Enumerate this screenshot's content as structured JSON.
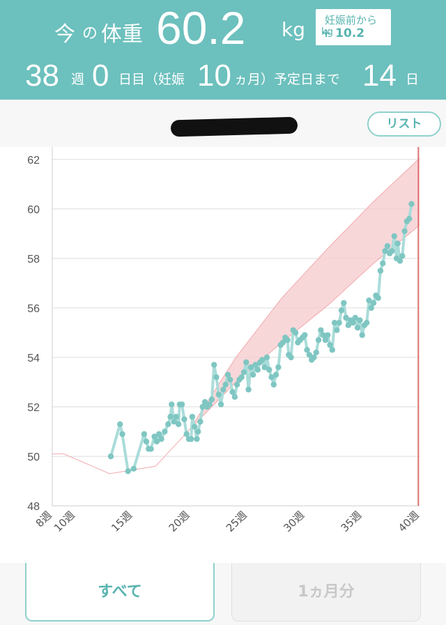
{
  "header": {
    "current_label_1": "今",
    "current_label_2": "の",
    "current_label_3": "体重",
    "weight_value": "60.2",
    "weight_unit": "kg",
    "delta_label": "妊娠前から",
    "delta_value": "+ 10.2",
    "delta_unit": "kg",
    "weeks": "38",
    "weeks_unit": "週",
    "days": "0",
    "days_unit": "日目（妊娠",
    "months": "10",
    "months_unit": "ヵ月）予定日まで",
    "days_left": "14",
    "days_left_unit": "日"
  },
  "toolbar": {
    "list_label": "リスト"
  },
  "tabs": {
    "all_label": "すべて",
    "month_label": "1ヵ月分"
  },
  "colors": {
    "header_bg": "#6cc0bd",
    "accent": "#58b4b0",
    "series": "#7fc6c2",
    "range_fill": "#f6c9cc",
    "due_line": "#e07070"
  },
  "chart_data": {
    "type": "line",
    "y_ticks": [
      48,
      50,
      52,
      54,
      56,
      58,
      60,
      62
    ],
    "x_ticks": [
      "8週",
      "10週",
      "15週",
      "20週",
      "25週",
      "30週",
      "35週",
      "40週"
    ],
    "x_tick_values": [
      8,
      10,
      15,
      20,
      25,
      30,
      35,
      40
    ],
    "xlim": [
      8,
      40
    ],
    "ylim": [
      48,
      62.5
    ],
    "grid": true,
    "due_week": 39.9,
    "recommended_range": {
      "weeks": [
        8,
        9,
        13,
        17,
        20,
        24,
        28,
        32,
        36,
        39.9,
        41.5
      ],
      "lower": [
        50.1,
        50.1,
        49.3,
        49.6,
        51.1,
        53.0,
        54.6,
        56.1,
        57.8,
        59.3,
        60.0
      ],
      "upper": [
        50.1,
        50.1,
        49.3,
        49.6,
        51.1,
        54.0,
        56.4,
        58.4,
        60.3,
        62.0,
        63.0
      ]
    },
    "weight_series": {
      "name": "体重",
      "points": [
        [
          13.1,
          50.0
        ],
        [
          13.9,
          51.3
        ],
        [
          14.1,
          50.9
        ],
        [
          14.6,
          49.4
        ],
        [
          15.1,
          49.5
        ],
        [
          16.0,
          50.9
        ],
        [
          16.2,
          50.6
        ],
        [
          16.4,
          50.3
        ],
        [
          16.6,
          50.3
        ],
        [
          16.9,
          50.8
        ],
        [
          17.1,
          50.6
        ],
        [
          17.3,
          50.9
        ],
        [
          17.5,
          50.7
        ],
        [
          17.8,
          51.0
        ],
        [
          18.1,
          51.3
        ],
        [
          18.3,
          51.6
        ],
        [
          18.4,
          52.1
        ],
        [
          18.6,
          51.4
        ],
        [
          18.8,
          51.6
        ],
        [
          19.0,
          51.3
        ],
        [
          19.1,
          52.1
        ],
        [
          19.3,
          52.1
        ],
        [
          19.5,
          51.5
        ],
        [
          19.7,
          50.9
        ],
        [
          19.9,
          50.7
        ],
        [
          20.1,
          50.7
        ],
        [
          20.2,
          51.6
        ],
        [
          20.4,
          51.2
        ],
        [
          20.6,
          50.7
        ],
        [
          20.7,
          51.0
        ],
        [
          20.9,
          51.4
        ],
        [
          21.1,
          52.0
        ],
        [
          21.3,
          52.2
        ],
        [
          21.5,
          52.0
        ],
        [
          21.7,
          52.1
        ],
        [
          21.9,
          52.3
        ],
        [
          22.1,
          53.7
        ],
        [
          22.3,
          53.2
        ],
        [
          22.5,
          52.5
        ],
        [
          22.7,
          52.1
        ],
        [
          22.9,
          52.7
        ],
        [
          23.1,
          52.9
        ],
        [
          23.3,
          53.3
        ],
        [
          23.5,
          53.1
        ],
        [
          23.7,
          52.6
        ],
        [
          23.9,
          52.4
        ],
        [
          24.1,
          52.9
        ],
        [
          24.3,
          53.1
        ],
        [
          24.5,
          53.2
        ],
        [
          24.7,
          53.4
        ],
        [
          24.9,
          53.8
        ],
        [
          25.1,
          52.7
        ],
        [
          25.3,
          53.6
        ],
        [
          25.5,
          53.3
        ],
        [
          25.7,
          53.7
        ],
        [
          25.9,
          53.5
        ],
        [
          26.1,
          53.8
        ],
        [
          26.3,
          53.9
        ],
        [
          26.5,
          53.6
        ],
        [
          26.7,
          54.0
        ],
        [
          26.9,
          53.5
        ],
        [
          27.1,
          53.2
        ],
        [
          27.3,
          52.9
        ],
        [
          27.5,
          53.3
        ],
        [
          27.7,
          53.6
        ],
        [
          27.9,
          54.5
        ],
        [
          28.1,
          54.6
        ],
        [
          28.3,
          54.8
        ],
        [
          28.5,
          54.7
        ],
        [
          28.6,
          54.1
        ],
        [
          28.8,
          54.0
        ],
        [
          29.0,
          55.1
        ],
        [
          29.2,
          55.0
        ],
        [
          29.4,
          54.6
        ],
        [
          29.6,
          54.7
        ],
        [
          29.8,
          54.8
        ],
        [
          30.0,
          54.9
        ],
        [
          30.2,
          54.3
        ],
        [
          30.4,
          54.1
        ],
        [
          30.6,
          53.9
        ],
        [
          30.8,
          54.0
        ],
        [
          31.0,
          54.2
        ],
        [
          31.2,
          54.7
        ],
        [
          31.4,
          55.1
        ],
        [
          31.6,
          54.9
        ],
        [
          31.8,
          54.7
        ],
        [
          32.0,
          54.9
        ],
        [
          32.2,
          54.5
        ],
        [
          32.4,
          54.3
        ],
        [
          32.6,
          55.4
        ],
        [
          32.8,
          55.1
        ],
        [
          33.0,
          55.4
        ],
        [
          33.2,
          55.9
        ],
        [
          33.4,
          56.2
        ],
        [
          33.6,
          55.6
        ],
        [
          33.8,
          55.3
        ],
        [
          34.0,
          55.5
        ],
        [
          34.2,
          55.4
        ],
        [
          34.4,
          55.6
        ],
        [
          34.6,
          55.2
        ],
        [
          34.8,
          55.5
        ],
        [
          35.0,
          54.9
        ],
        [
          35.2,
          55.3
        ],
        [
          35.4,
          55.4
        ],
        [
          35.6,
          56.3
        ],
        [
          35.8,
          56.0
        ],
        [
          36.0,
          56.2
        ],
        [
          36.2,
          56.5
        ],
        [
          36.4,
          56.4
        ],
        [
          36.6,
          57.5
        ],
        [
          36.8,
          57.8
        ],
        [
          37.0,
          58.3
        ],
        [
          37.2,
          58.5
        ],
        [
          37.4,
          58.2
        ],
        [
          37.6,
          58.3
        ],
        [
          37.8,
          58.9
        ],
        [
          38.0,
          58.0
        ],
        [
          38.1,
          58.6
        ],
        [
          38.3,
          57.9
        ],
        [
          38.5,
          58.1
        ],
        [
          38.7,
          59.1
        ],
        [
          38.9,
          59.5
        ],
        [
          39.1,
          59.6
        ],
        [
          39.3,
          60.2
        ]
      ]
    }
  }
}
